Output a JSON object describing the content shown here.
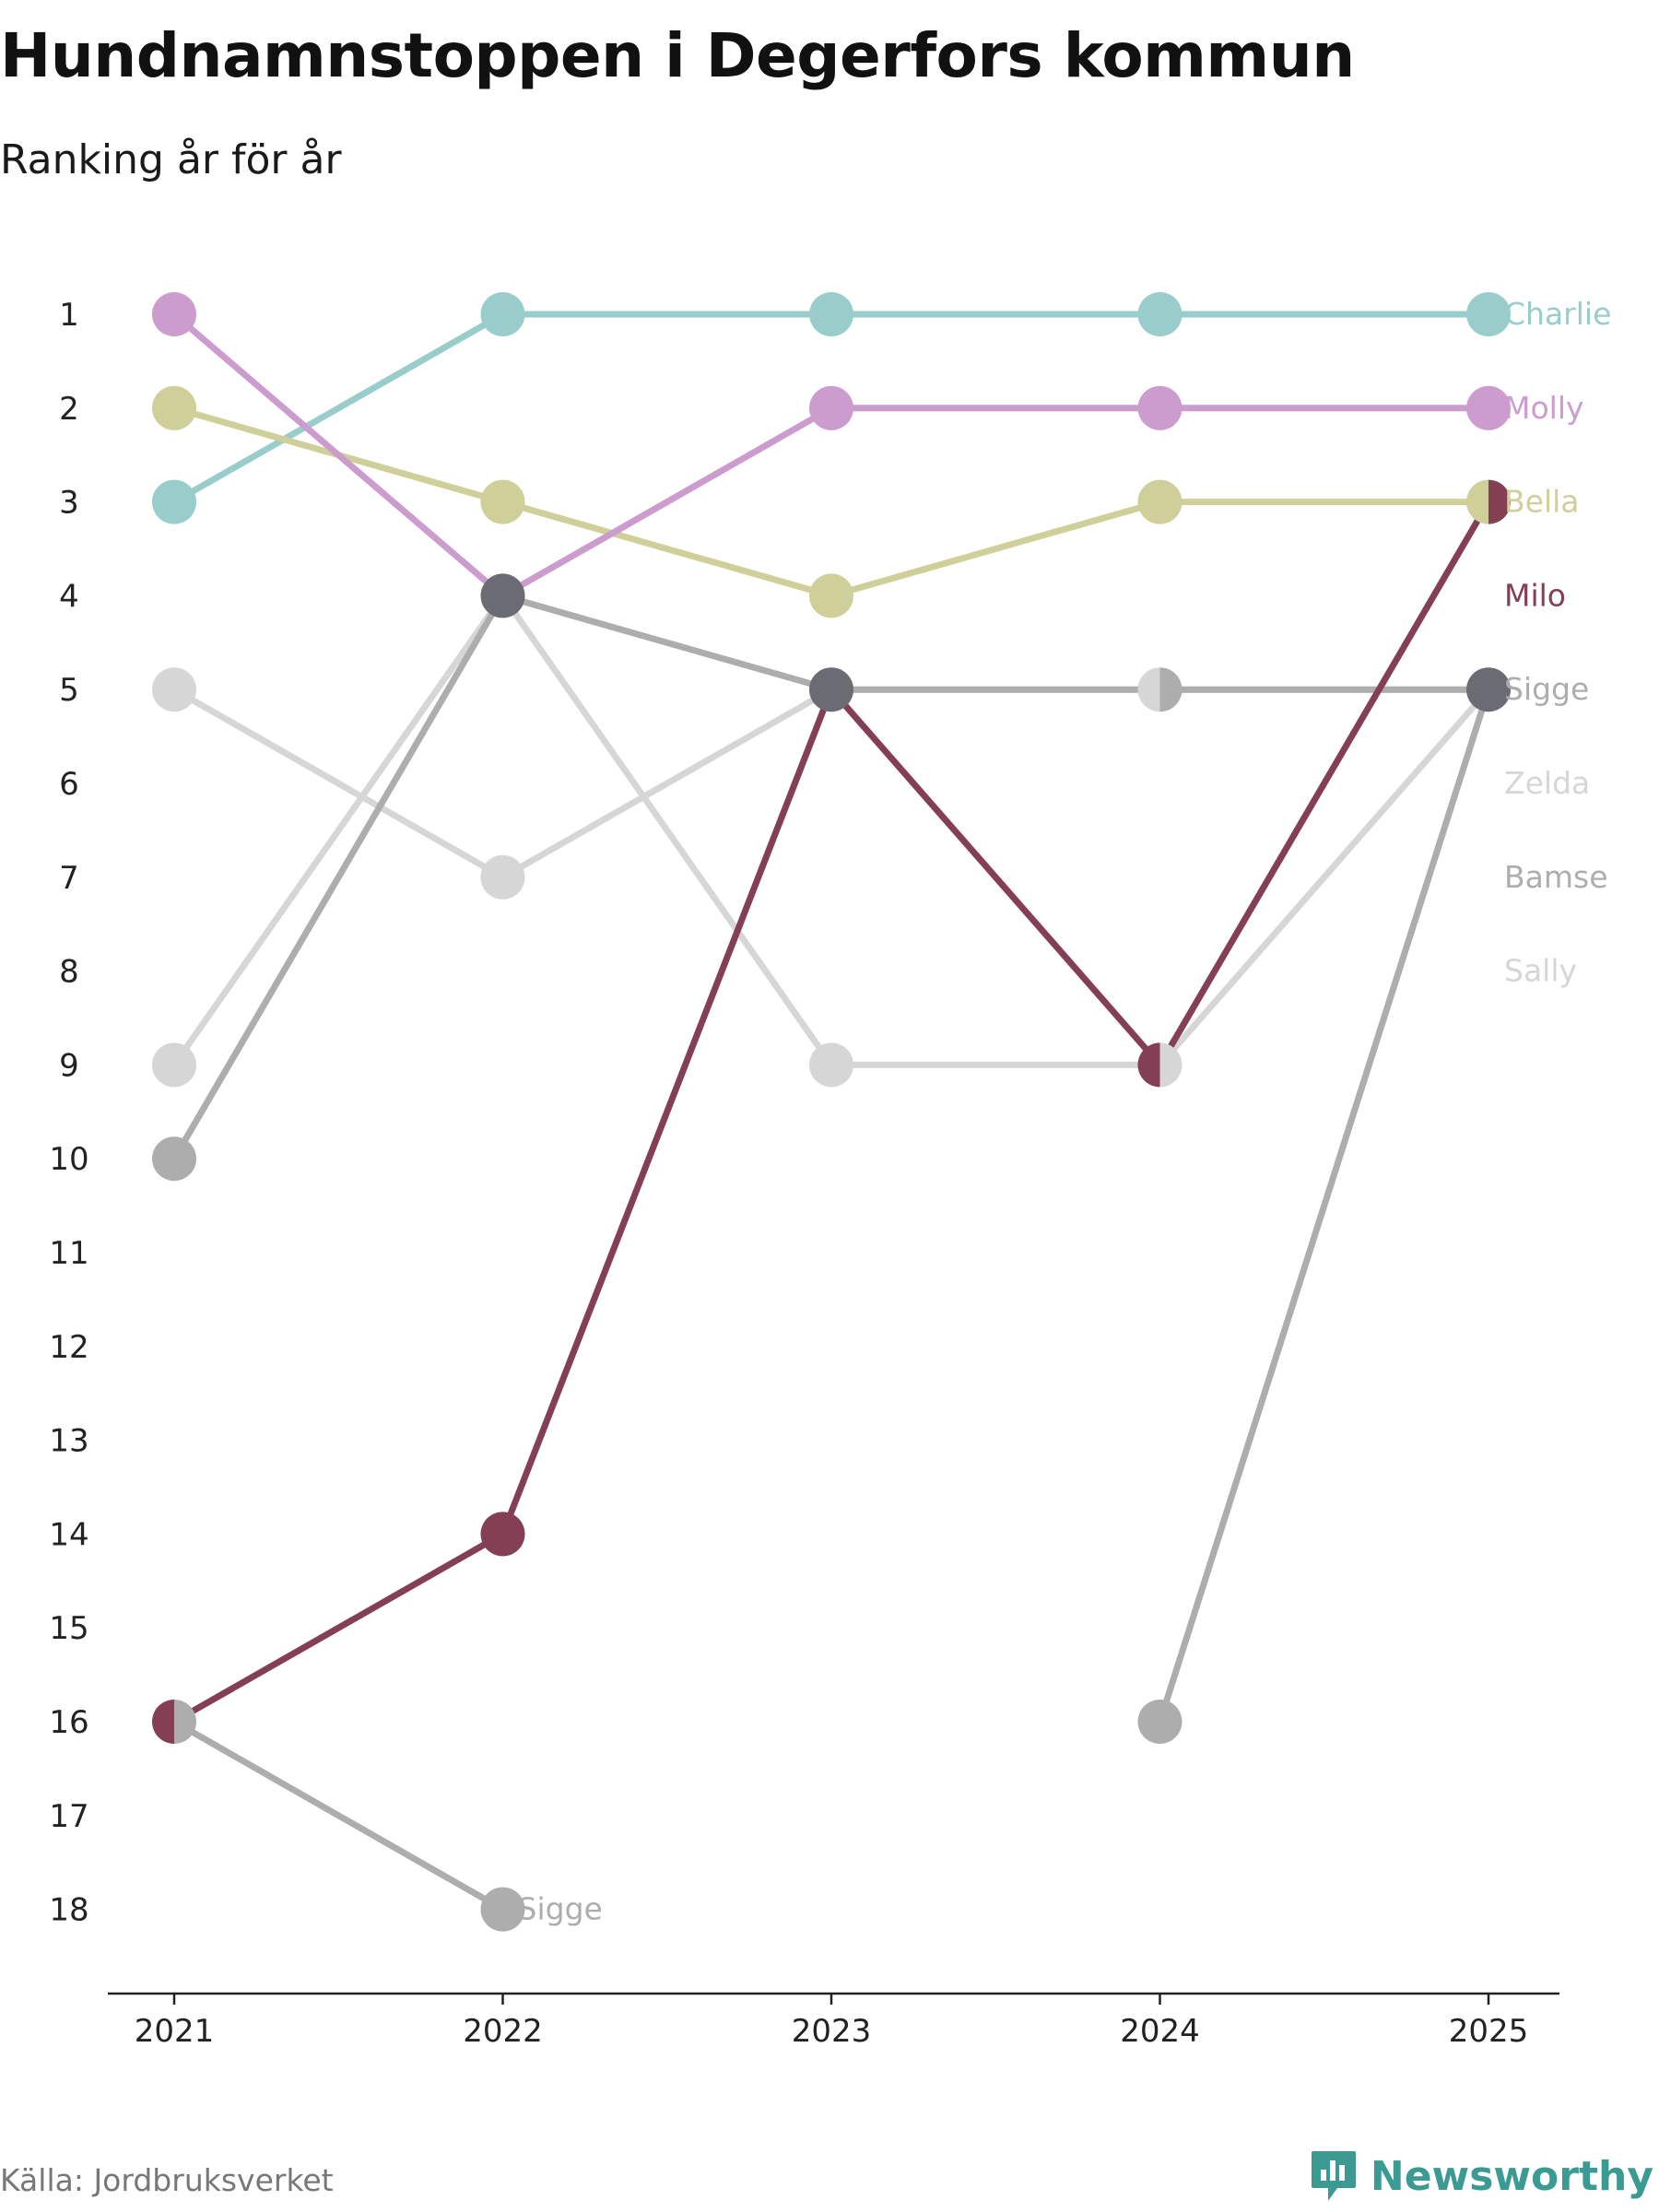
{
  "header": {
    "title": "Hundnamnstoppen i Degerfors kommun",
    "subtitle": "Ranking år för år"
  },
  "footer": {
    "source": "Källa: Jordbruksverket",
    "brand": "Newsworthy",
    "brand_icon": "newsworthy-logo-icon",
    "brand_color": "#3b9a91"
  },
  "chart_data": {
    "type": "line",
    "subtype": "bump",
    "title": "Hundnamnstoppen i Degerfors kommun",
    "subtitle": "Ranking år för år",
    "x": [
      "2021",
      "2022",
      "2023",
      "2024",
      "2025"
    ],
    "y_ticks": [
      "1",
      "2",
      "3",
      "4",
      "5",
      "6",
      "7",
      "8",
      "9",
      "10",
      "11",
      "12",
      "13",
      "14",
      "15",
      "16",
      "17",
      "18"
    ],
    "ylim": [
      1,
      18
    ],
    "y_inverted": true,
    "grid": false,
    "legend": "end-labels",
    "series": [
      {
        "name": "Sally",
        "color": "#d6d6d6",
        "values": [
          9,
          4,
          9,
          9,
          5
        ]
      },
      {
        "name": "Zelda",
        "color": "#d6d6d6",
        "values": [
          5,
          7,
          5,
          5,
          5
        ]
      },
      {
        "name": "Bamse",
        "color": "#adadad",
        "values": [
          10,
          4,
          5,
          5,
          5
        ]
      },
      {
        "name": "Sigge",
        "color": "#adadad",
        "values": [
          16,
          18,
          null,
          16,
          5
        ]
      },
      {
        "name": "Charlie",
        "color": "#98cdcb",
        "values": [
          3,
          1,
          1,
          1,
          1
        ]
      },
      {
        "name": "Bella",
        "color": "#cfcf9a",
        "values": [
          2,
          3,
          4,
          3,
          3
        ]
      },
      {
        "name": "Molly",
        "color": "#cc9ccf",
        "values": [
          1,
          4,
          2,
          2,
          2
        ]
      },
      {
        "name": "Milo",
        "color": "#843f55",
        "values": [
          16,
          14,
          5,
          9,
          3
        ]
      }
    ],
    "end_labels": [
      {
        "text": "Charlie",
        "color": "#98cdcb",
        "rank": 1
      },
      {
        "text": "Molly",
        "color": "#cc9ccf",
        "rank": 2
      },
      {
        "text": "Bella",
        "color": "#cfcf9a",
        "rank": 3
      },
      {
        "text": "Milo",
        "color": "#843f55",
        "rank": 4
      },
      {
        "text": "Sigge",
        "color": "#adadad",
        "rank": 5
      },
      {
        "text": "Zelda",
        "color": "#d6d6d6",
        "rank": 6
      },
      {
        "text": "Bamse",
        "color": "#adadad",
        "rank": 7
      },
      {
        "text": "Sally",
        "color": "#d6d6d6",
        "rank": 8
      }
    ],
    "annotations": [
      {
        "text": "Sigge",
        "color": "#adadad",
        "x": "2022",
        "rank": 18
      }
    ],
    "dark_dot_color": "#6b6b73"
  }
}
